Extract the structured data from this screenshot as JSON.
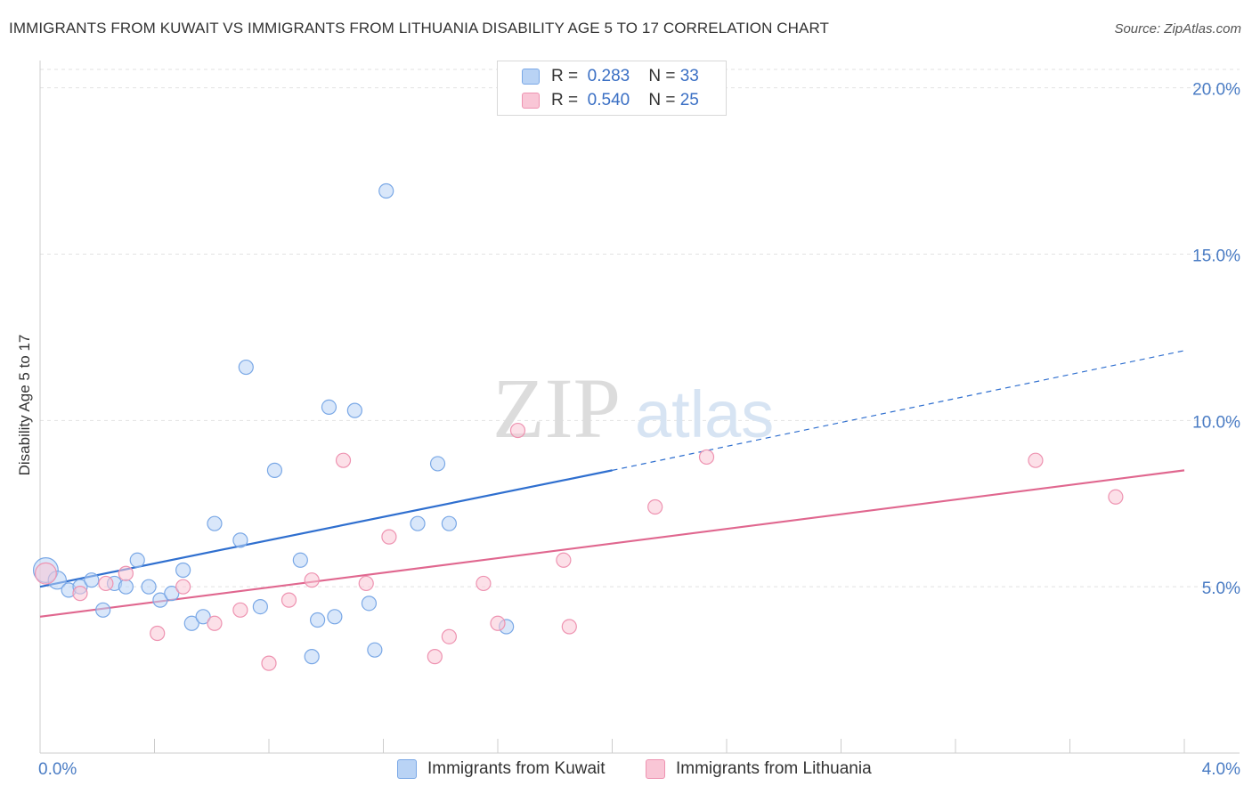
{
  "title": "IMMIGRANTS FROM KUWAIT VS IMMIGRANTS FROM LITHUANIA DISABILITY AGE 5 TO 17 CORRELATION CHART",
  "source": "Source: ZipAtlas.com",
  "watermark": {
    "zip": "ZIP",
    "atlas": "atlas"
  },
  "legend": {
    "r_label": "R =",
    "n_label": "N =",
    "series": [
      {
        "name": "Immigrants from Kuwait",
        "r": "0.283",
        "n": "33",
        "fill": "#b9d3f5",
        "stroke": "#7aa8e6",
        "line": "#2f6fcf"
      },
      {
        "name": "Immigrants from Lithuania",
        "r": "0.540",
        "n": "25",
        "fill": "#f9c6d6",
        "stroke": "#ee93b1",
        "line": "#e0678f"
      }
    ]
  },
  "chart_data": {
    "type": "scatter",
    "title": "IMMIGRANTS FROM KUWAIT VS IMMIGRANTS FROM LITHUANIA DISABILITY AGE 5 TO 17 CORRELATION CHART",
    "xlabel": "",
    "ylabel": "Disability Age 5 to 17",
    "xlim": [
      0,
      4.0
    ],
    "ylim": [
      0,
      20.5
    ],
    "x_tick_labels": [
      "0.0%",
      "4.0%"
    ],
    "y_ticks": [
      5,
      10,
      15,
      20
    ],
    "y_tick_labels": [
      "5.0%",
      "10.0%",
      "15.0%",
      "20.0%"
    ],
    "grid": true,
    "series": [
      {
        "name": "Immigrants from Kuwait",
        "points": [
          [
            0.02,
            5.5,
            3
          ],
          [
            0.06,
            5.2,
            1.6
          ],
          [
            0.1,
            4.9,
            1
          ],
          [
            0.14,
            5.0,
            1
          ],
          [
            0.18,
            5.2,
            1
          ],
          [
            0.22,
            4.3,
            1
          ],
          [
            0.26,
            5.1,
            1
          ],
          [
            0.3,
            5.0,
            1
          ],
          [
            0.34,
            5.8,
            1
          ],
          [
            0.38,
            5.0,
            1
          ],
          [
            0.42,
            4.6,
            1
          ],
          [
            0.46,
            4.8,
            1
          ],
          [
            0.5,
            5.5,
            1
          ],
          [
            0.53,
            3.9,
            1
          ],
          [
            0.57,
            4.1,
            1
          ],
          [
            0.61,
            6.9,
            1
          ],
          [
            0.7,
            6.4,
            1
          ],
          [
            0.72,
            11.6,
            1
          ],
          [
            0.77,
            4.4,
            1
          ],
          [
            0.82,
            8.5,
            1
          ],
          [
            0.91,
            5.8,
            1
          ],
          [
            0.95,
            2.9,
            1
          ],
          [
            0.97,
            4.0,
            1
          ],
          [
            1.01,
            10.4,
            1
          ],
          [
            1.03,
            4.1,
            1
          ],
          [
            1.1,
            10.3,
            1
          ],
          [
            1.15,
            4.5,
            1
          ],
          [
            1.17,
            3.1,
            1
          ],
          [
            1.21,
            16.9,
            1
          ],
          [
            1.32,
            6.9,
            1
          ],
          [
            1.39,
            8.7,
            1
          ],
          [
            1.43,
            6.9,
            1
          ],
          [
            1.63,
            3.8,
            1
          ]
        ],
        "trend": {
          "x0": 0.0,
          "y0": 5.0,
          "x1": 2.0,
          "y1": 8.5,
          "dash_to_x": 4.0,
          "dash_to_y": 12.1
        }
      },
      {
        "name": "Immigrants from Lithuania",
        "points": [
          [
            0.02,
            5.4,
            2.2
          ],
          [
            0.14,
            4.8,
            1
          ],
          [
            0.23,
            5.1,
            1
          ],
          [
            0.3,
            5.4,
            1
          ],
          [
            0.41,
            3.6,
            1
          ],
          [
            0.5,
            5.0,
            1
          ],
          [
            0.61,
            3.9,
            1
          ],
          [
            0.7,
            4.3,
            1
          ],
          [
            0.8,
            2.7,
            1
          ],
          [
            0.87,
            4.6,
            1
          ],
          [
            0.95,
            5.2,
            1
          ],
          [
            1.06,
            8.8,
            1
          ],
          [
            1.14,
            5.1,
            1
          ],
          [
            1.22,
            6.5,
            1
          ],
          [
            1.38,
            2.9,
            1
          ],
          [
            1.43,
            3.5,
            1
          ],
          [
            1.55,
            5.1,
            1
          ],
          [
            1.6,
            3.9,
            1
          ],
          [
            1.67,
            9.7,
            1
          ],
          [
            1.83,
            5.8,
            1
          ],
          [
            1.85,
            3.8,
            1
          ],
          [
            2.15,
            7.4,
            1
          ],
          [
            2.33,
            8.9,
            1
          ],
          [
            3.48,
            8.8,
            1
          ],
          [
            3.76,
            7.7,
            1
          ]
        ],
        "trend": {
          "x0": 0.0,
          "y0": 4.1,
          "x1": 4.0,
          "y1": 8.5
        }
      }
    ]
  }
}
